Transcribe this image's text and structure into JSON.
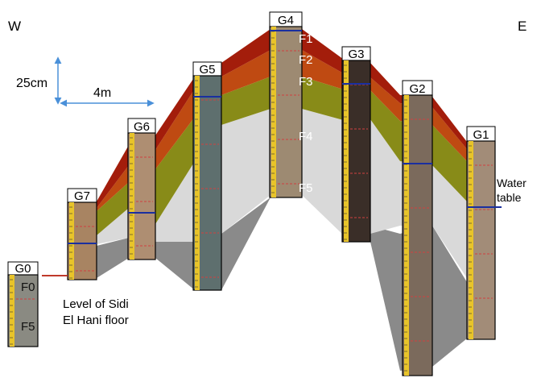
{
  "orientation": {
    "west": "W",
    "east": "E"
  },
  "scale": {
    "vertical": "25cm",
    "horizontal": "4m"
  },
  "cores": [
    {
      "label": "G0",
      "color": "#8a8a82",
      "unit_labels": [
        "F0",
        "F5"
      ]
    },
    {
      "label": "G7",
      "color": "#a88462"
    },
    {
      "label": "G6",
      "color": "#ae8e72"
    },
    {
      "label": "G5",
      "color": "#5e6f6e"
    },
    {
      "label": "G4",
      "color": "#9d8a72",
      "unit_labels": [
        "F1",
        "F2",
        "F3",
        "F4",
        "F5"
      ]
    },
    {
      "label": "G3",
      "color": "#3a2e28"
    },
    {
      "label": "G2",
      "color": "#7b6a5c"
    },
    {
      "label": "G1",
      "color": "#a28c78"
    }
  ],
  "layers": [
    {
      "name": "F1",
      "color": "#a31d0b"
    },
    {
      "name": "F2",
      "color": "#bf4a12"
    },
    {
      "name": "F3",
      "color": "#888b18"
    },
    {
      "name": "F4",
      "color": "#d9d9d9"
    },
    {
      "name": "F5",
      "color": "#8a8a8a"
    }
  ],
  "annotations": {
    "water_table": "Water table",
    "floor_level": "Level of Sidi El Hani floor"
  }
}
